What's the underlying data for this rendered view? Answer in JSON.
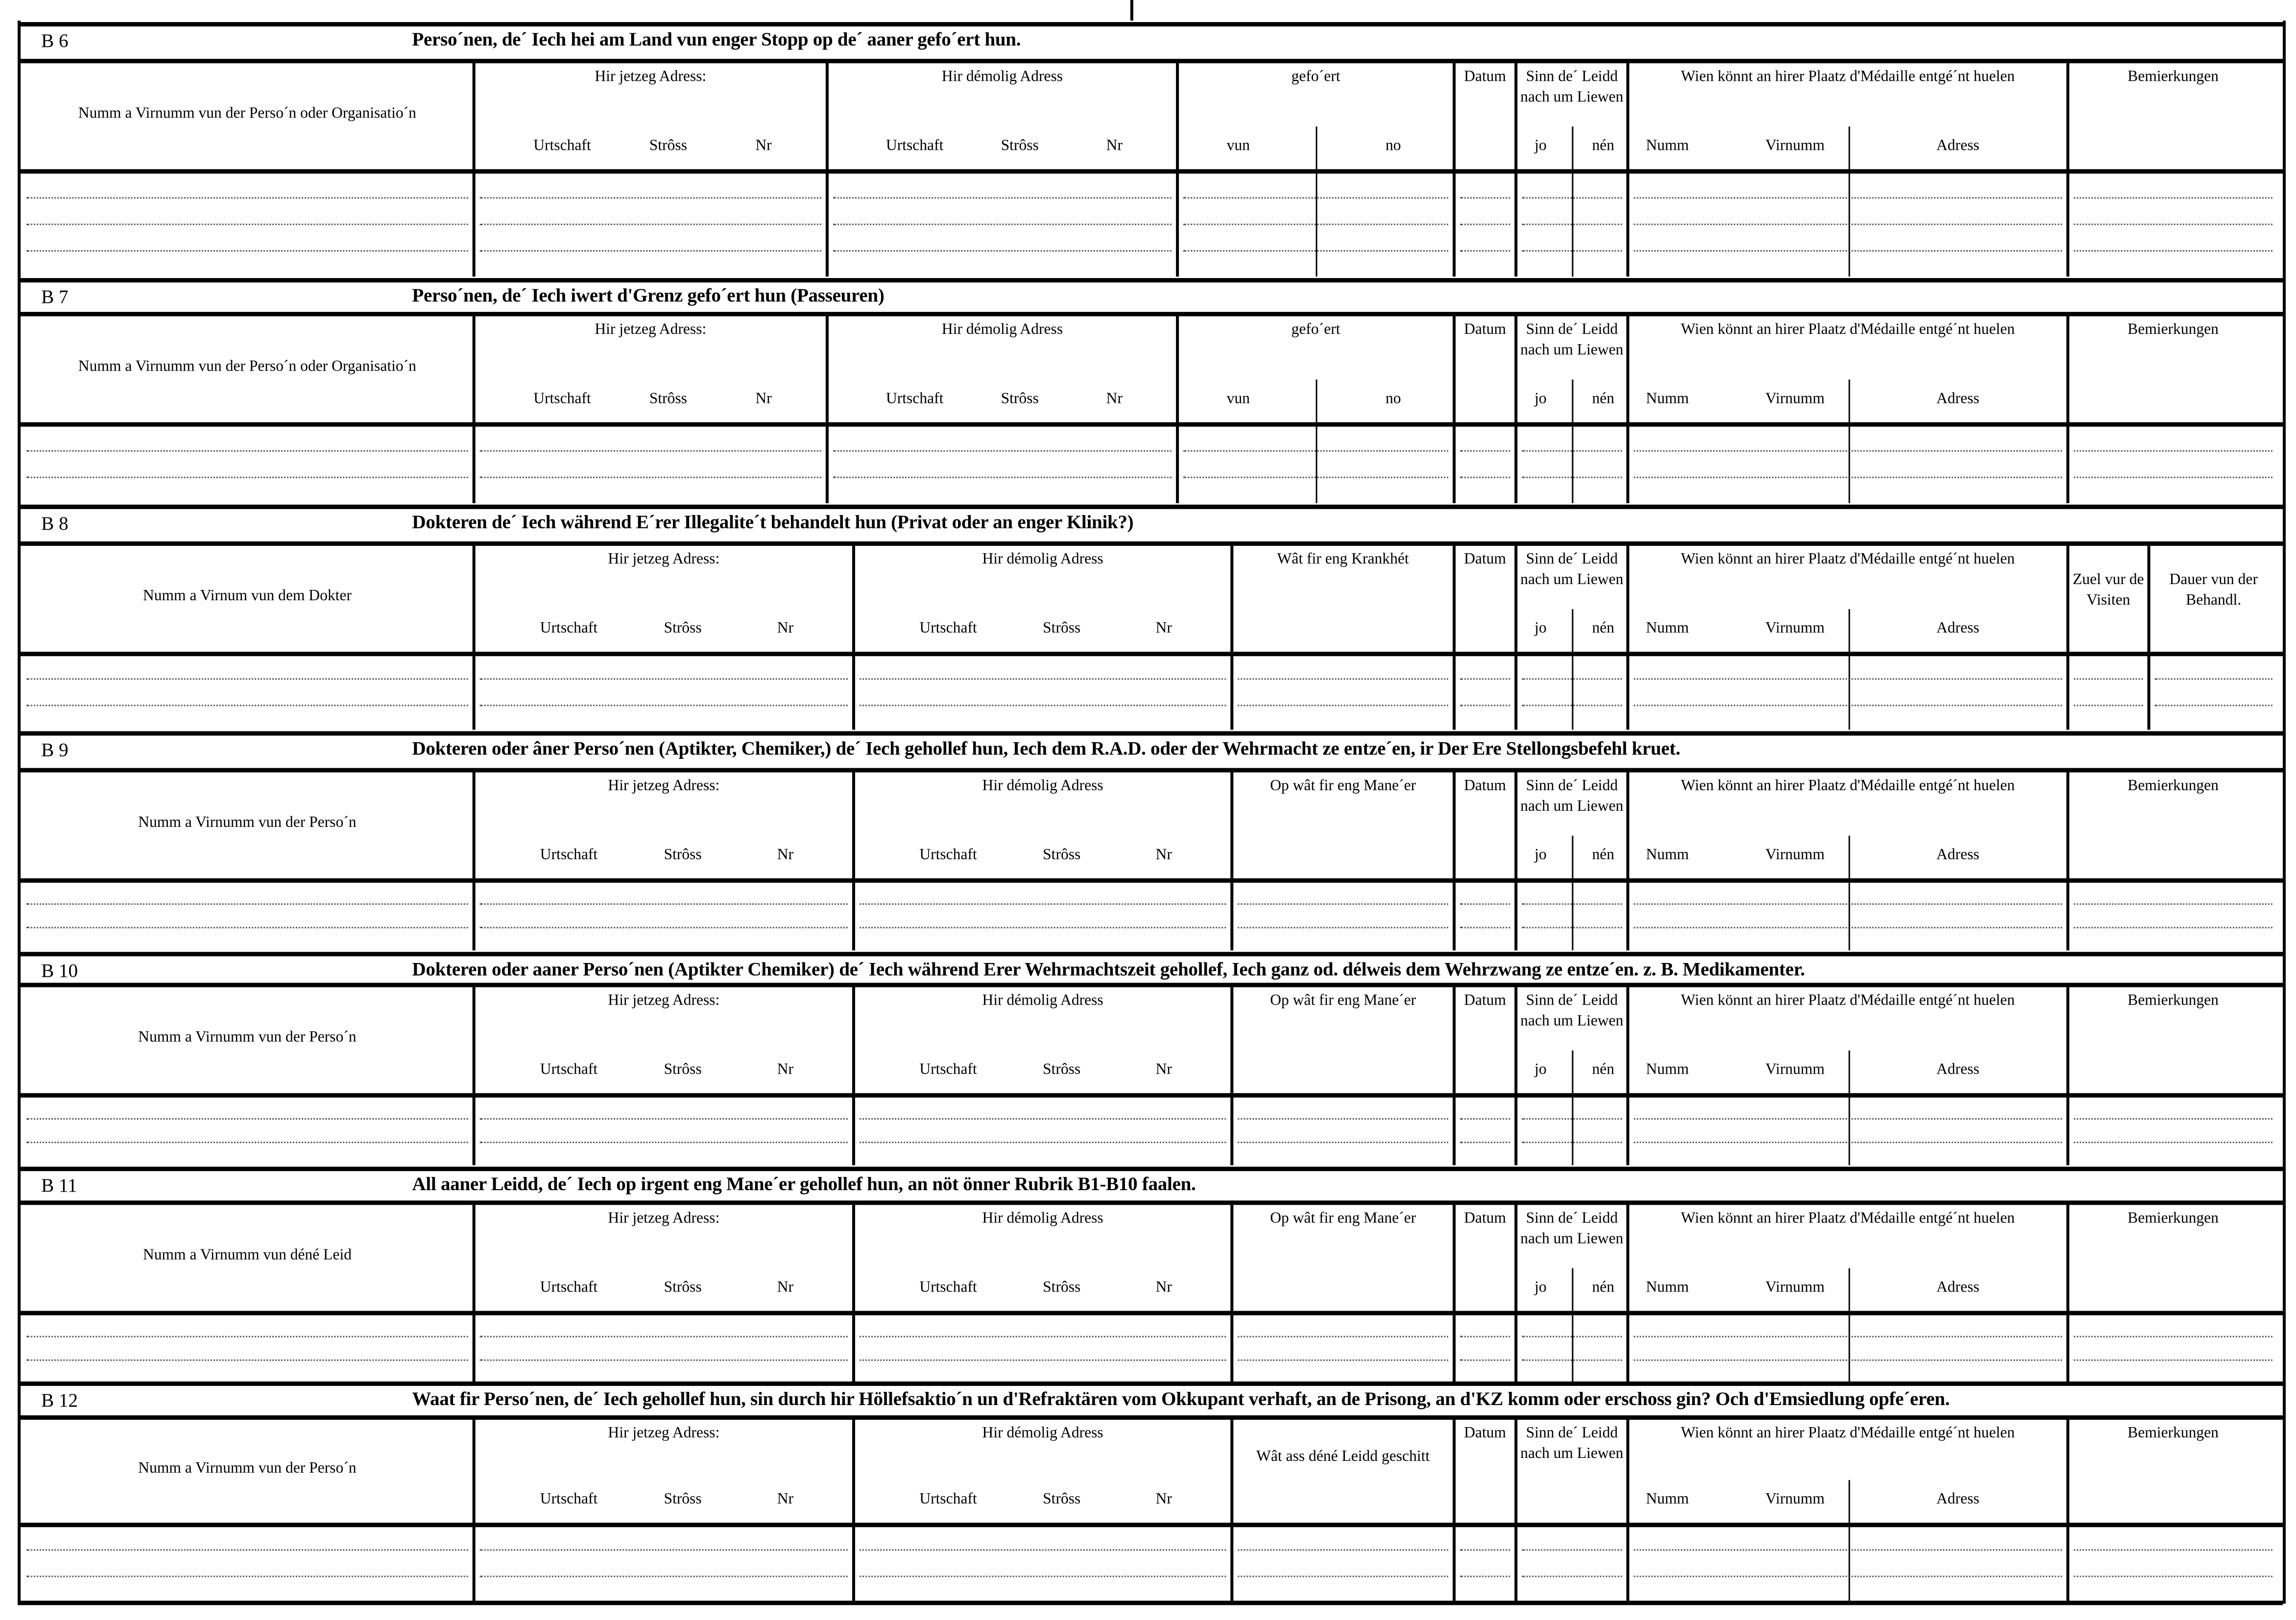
{
  "sections": [
    {
      "id": "B 6",
      "title": "Perso´nen, de´ Iech hei am Land vun enger Stopp  op de´ aaner gefo´ert hun.",
      "layout": "A",
      "columns": [
        {
          "label": "Numm a Virnumm vun der Perso´n oder Organisatio´n",
          "sub": []
        },
        {
          "label": "Hir jetzeg Adress:",
          "sub": [
            "Urtschaft",
            "Strôss",
            "Nr"
          ]
        },
        {
          "label": "Hir démolig Adress",
          "sub": [
            "Urtschaft",
            "Strôss",
            "Nr"
          ]
        },
        {
          "label": "gefo´ert",
          "sub": [
            "vun",
            "no"
          ]
        },
        {
          "label": "Datum",
          "sub": []
        },
        {
          "label": "Sinn de´ Leidd nach um Liewen",
          "sub": [
            "jo",
            "nén"
          ]
        },
        {
          "label": "Wien könnt an hirer Plaatz d'Médaille entgé´nt huelen",
          "sub": [
            "Numm",
            "Virnumm",
            "Adress"
          ]
        },
        {
          "label": "Bemierkungen",
          "sub": []
        }
      ]
    },
    {
      "id": "B 7",
      "title": "Perso´nen, de´ Iech iwert d'Grenz gefo´ert hun  (Passeuren)",
      "layout": "A",
      "columns": [
        {
          "label": "Numm a Virnumm vun der Perso´n oder Organisatio´n",
          "sub": []
        },
        {
          "label": "Hir jetzeg Adress:",
          "sub": [
            "Urtschaft",
            "Strôss",
            "Nr"
          ]
        },
        {
          "label": "Hir démolig Adress",
          "sub": [
            "Urtschaft",
            "Strôss",
            "Nr"
          ]
        },
        {
          "label": "gefo´ert",
          "sub": [
            "vun",
            "no"
          ]
        },
        {
          "label": "Datum",
          "sub": []
        },
        {
          "label": "Sinn de´ Leidd nach um Liewen",
          "sub": [
            "jo",
            "nén"
          ]
        },
        {
          "label": "Wien könnt an hirer Plaatz d'Médaille entgé´nt huelen",
          "sub": [
            "Numm",
            "Virnumm",
            "Adress"
          ]
        },
        {
          "label": "Bemierkungen",
          "sub": []
        }
      ]
    },
    {
      "id": "B 8",
      "title": "Dokteren de´ Iech während E´rer Illegalite´t behandelt hun (Privat  oder an enger Klinik?)",
      "layout": "B",
      "columns": [
        {
          "label": "Numm a Virnum vun dem Dokter",
          "sub": []
        },
        {
          "label": "Hir jetzeg Adress:",
          "sub": [
            "Urtschaft",
            "Strôss",
            "Nr"
          ]
        },
        {
          "label": "Hir démolig Adress",
          "sub": [
            "Urtschaft",
            "Strôss",
            "Nr"
          ]
        },
        {
          "label": "Wât fir eng Krankhét",
          "sub": []
        },
        {
          "label": "Datum",
          "sub": []
        },
        {
          "label": "Sinn de´ Leidd nach um Liewen",
          "sub": [
            "jo",
            "nén"
          ]
        },
        {
          "label": "Wien könnt an hirer Plaatz d'Médaille entgé´nt huelen",
          "sub": [
            "Numm",
            "Virnumm",
            "Adress"
          ]
        },
        {
          "label": "Zuel vur de Visiten",
          "sub": []
        },
        {
          "label": "Dauer vun der Behandl.",
          "sub": []
        }
      ]
    },
    {
      "id": "B 9",
      "title": "Dokteren oder âner Perso´nen (Aptikter, Chemiker,) de´ Iech gehollef hun, Iech dem R.A.D. oder der Wehrmacht ze entze´en, ir Der Ere Stellongsbefehl kruet.",
      "layout": "C",
      "columns": [
        {
          "label": "Numm a Virnumm vun der Perso´n",
          "sub": []
        },
        {
          "label": "Hir jetzeg Adress:",
          "sub": [
            "Urtschaft",
            "Strôss",
            "Nr"
          ]
        },
        {
          "label": "Hir démolig Adress",
          "sub": [
            "Urtschaft",
            "Strôss",
            "Nr"
          ]
        },
        {
          "label": "Op wât fir eng Mane´er",
          "sub": []
        },
        {
          "label": "Datum",
          "sub": []
        },
        {
          "label": "Sinn de´ Leidd nach um Liewen",
          "sub": [
            "jo",
            "nén"
          ]
        },
        {
          "label": "Wien könnt an hirer Plaatz d'Médaille entgé´nt huelen",
          "sub": [
            "Numm",
            "Virnumm",
            "Adress"
          ]
        },
        {
          "label": "Bemierkungen",
          "sub": []
        }
      ]
    },
    {
      "id": "B 10",
      "title": "Dokteren oder aaner Perso´nen (Aptikter Chemiker) de´ Iech während Erer Wehrmachtszeit gehollef, Iech ganz od. délweis dem Wehrzwang ze entze´en. z. B. Medikamenter.",
      "layout": "C",
      "columns": [
        {
          "label": "Numm a Virnumm vun der Perso´n",
          "sub": []
        },
        {
          "label": "Hir jetzeg Adress:",
          "sub": [
            "Urtschaft",
            "Strôss",
            "Nr"
          ]
        },
        {
          "label": "Hir démolig Adress",
          "sub": [
            "Urtschaft",
            "Strôss",
            "Nr"
          ]
        },
        {
          "label": "Op wât fir eng Mane´er",
          "sub": []
        },
        {
          "label": "Datum",
          "sub": []
        },
        {
          "label": "Sinn de´ Leidd nach um Liewen",
          "sub": [
            "jo",
            "nén"
          ]
        },
        {
          "label": "Wien könnt an hirer Plaatz d'Médaille entgé´nt huelen",
          "sub": [
            "Numm",
            "Virnumm",
            "Adress"
          ]
        },
        {
          "label": "Bemierkungen",
          "sub": []
        }
      ]
    },
    {
      "id": "B 11",
      "title": "All aaner Leidd, de´ Iech op irgent eng Mane´er  gehollef hun, an nöt önner Rubrik B1-B10 faalen.",
      "layout": "C",
      "columns": [
        {
          "label": "Numm a Virnumm vun déné Leid",
          "sub": []
        },
        {
          "label": "Hir jetzeg Adress:",
          "sub": [
            "Urtschaft",
            "Strôss",
            "Nr"
          ]
        },
        {
          "label": "Hir démolig Adress",
          "sub": [
            "Urtschaft",
            "Strôss",
            "Nr"
          ]
        },
        {
          "label": "Op wât fir eng Mane´er",
          "sub": []
        },
        {
          "label": "Datum",
          "sub": []
        },
        {
          "label": "Sinn de´ Leidd nach um Liewen",
          "sub": [
            "jo",
            "nén"
          ]
        },
        {
          "label": "Wien könnt an hirer Plaatz d'Médaille entgé´nt huelen",
          "sub": [
            "Numm",
            "Virnumm",
            "Adress"
          ]
        },
        {
          "label": "Bemierkungen",
          "sub": []
        }
      ]
    },
    {
      "id": "B 12",
      "title": "Waat fir Perso´nen, de´ Iech gehollef hun, sin durch hir Höllefsaktio´n un d'Refraktären vom Okkupant verhaft, an de Prisong, an d'KZ komm oder  erschoss gin? Och d'Emsiedlung opfe´eren.",
      "layout": "C",
      "columns": [
        {
          "label": "Numm a Virnumm vun der Perso´n",
          "sub": []
        },
        {
          "label": "Hir jetzeg Adress:",
          "sub": [
            "Urtschaft",
            "Strôss",
            "Nr"
          ]
        },
        {
          "label": "Hir démolig Adress",
          "sub": [
            "Urtschaft",
            "Strôss",
            "Nr"
          ]
        },
        {
          "label": "Wât ass déné Leidd geschitt",
          "sub": []
        },
        {
          "label": "Datum",
          "sub": []
        },
        {
          "label": "Sinn de´ Leidd nach um Liewen",
          "sub": []
        },
        {
          "label": "Wien könnt an hirer Plaatz d'Médaille entgé´nt huelen",
          "sub": [
            "Numm",
            "Virnumm",
            "Adress"
          ]
        },
        {
          "label": "Bemierkungen",
          "sub": []
        }
      ]
    }
  ]
}
